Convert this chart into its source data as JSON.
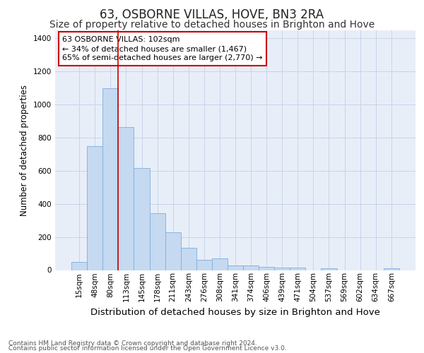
{
  "title": "63, OSBORNE VILLAS, HOVE, BN3 2RA",
  "subtitle": "Size of property relative to detached houses in Brighton and Hove",
  "xlabel": "Distribution of detached houses by size in Brighton and Hove",
  "ylabel": "Number of detached properties",
  "categories": [
    "15sqm",
    "48sqm",
    "80sqm",
    "113sqm",
    "145sqm",
    "178sqm",
    "211sqm",
    "243sqm",
    "276sqm",
    "308sqm",
    "341sqm",
    "374sqm",
    "406sqm",
    "439sqm",
    "471sqm",
    "504sqm",
    "537sqm",
    "569sqm",
    "602sqm",
    "634sqm",
    "667sqm"
  ],
  "values": [
    50,
    750,
    1100,
    865,
    615,
    345,
    228,
    133,
    60,
    70,
    28,
    28,
    18,
    15,
    15,
    0,
    10,
    0,
    0,
    0,
    10
  ],
  "bar_color": "#c5d9f0",
  "bar_edge_color": "#7aafe0",
  "vline_x": 2.5,
  "vline_color": "#cc0000",
  "annotation_text": "63 OSBORNE VILLAS: 102sqm\n← 34% of detached houses are smaller (1,467)\n65% of semi-detached houses are larger (2,770) →",
  "annotation_box_color": "#ffffff",
  "annotation_box_edge": "#cc0000",
  "ylim": [
    0,
    1450
  ],
  "yticks": [
    0,
    200,
    400,
    600,
    800,
    1000,
    1200,
    1400
  ],
  "grid_color": "#c8d4e8",
  "background_color": "#e8eef8",
  "footer1": "Contains HM Land Registry data © Crown copyright and database right 2024.",
  "footer2": "Contains public sector information licensed under the Open Government Licence v3.0.",
  "title_fontsize": 12,
  "subtitle_fontsize": 10,
  "xlabel_fontsize": 9.5,
  "ylabel_fontsize": 8.5,
  "tick_fontsize": 7.5,
  "annot_fontsize": 8,
  "footer_fontsize": 6.5
}
